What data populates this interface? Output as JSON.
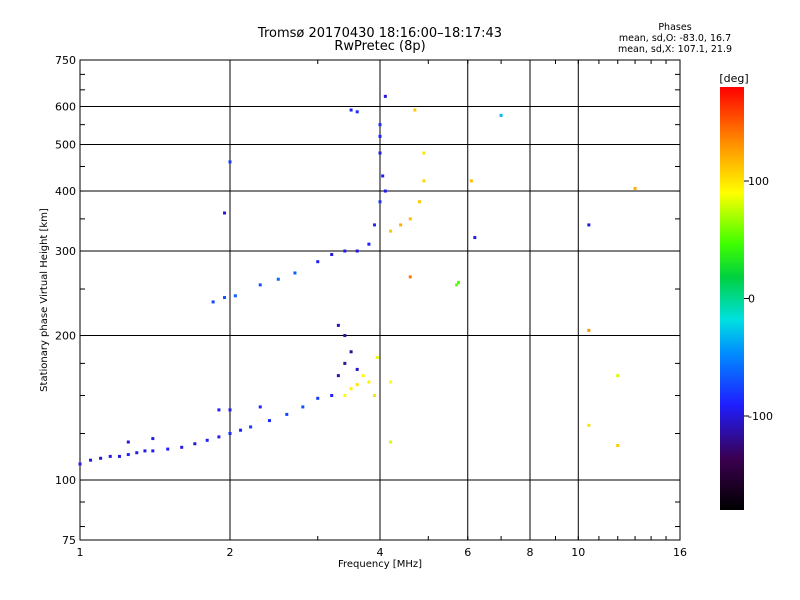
{
  "chart_data": {
    "type": "scatter",
    "title": "Tromsø 20170430 18:16:00–18:17:43",
    "subtitle": "RwPretec (8p)",
    "stats": {
      "heading": "Phases",
      "line1": "mean, sd,O: -83.0, 16.7",
      "line2": "mean, sd,X: 107.1, 21.9"
    },
    "xlabel": "Frequency [MHz]",
    "ylabel": "Stationary phase Virtual Height [km]",
    "x_scale": "log",
    "y_scale": "log",
    "xlim": [
      1,
      16
    ],
    "ylim": [
      75,
      750
    ],
    "x_ticks": [
      1,
      2,
      4,
      6,
      8,
      10,
      16
    ],
    "x_tick_labels": [
      "1",
      "2",
      "4",
      "6",
      "8",
      "10",
      "16"
    ],
    "y_ticks": [
      75,
      100,
      200,
      300,
      400,
      500,
      600,
      750
    ],
    "y_tick_labels": [
      "75",
      "100",
      "200",
      "300",
      "400",
      "500",
      "600",
      "750"
    ],
    "grid": true,
    "colorbar": {
      "label": "[deg]",
      "range": [
        -180,
        180
      ],
      "ticks": [
        100,
        0,
        -100
      ],
      "tick_labels": [
        "100",
        "0",
        "-100"
      ]
    },
    "series": [
      {
        "name": "",
        "points": [
          [
            1.0,
            108,
            -95
          ],
          [
            1.05,
            110,
            -100
          ],
          [
            1.1,
            111,
            -105
          ],
          [
            1.15,
            112,
            -95
          ],
          [
            1.2,
            112,
            -100
          ],
          [
            1.25,
            113,
            -90
          ],
          [
            1.3,
            114,
            -95
          ],
          [
            1.35,
            115,
            -100
          ],
          [
            1.4,
            115,
            -95
          ],
          [
            1.5,
            116,
            -90
          ],
          [
            1.6,
            117,
            -95
          ],
          [
            1.7,
            119,
            -100
          ],
          [
            1.8,
            121,
            -90
          ],
          [
            1.9,
            123,
            -95
          ],
          [
            2.0,
            125,
            -85
          ],
          [
            2.1,
            127,
            -90
          ],
          [
            2.2,
            129,
            -80
          ],
          [
            2.4,
            133,
            -85
          ],
          [
            2.6,
            137,
            -75
          ],
          [
            2.8,
            142,
            -70
          ],
          [
            3.0,
            148,
            -80
          ],
          [
            3.2,
            150,
            -90
          ],
          [
            3.3,
            165,
            -110
          ],
          [
            3.4,
            175,
            -115
          ],
          [
            3.5,
            185,
            -120
          ],
          [
            3.3,
            210,
            -110
          ],
          [
            3.4,
            200,
            -115
          ],
          [
            3.6,
            170,
            -105
          ],
          [
            1.25,
            120,
            -100
          ],
          [
            1.4,
            122,
            -95
          ],
          [
            1.9,
            140,
            -90
          ],
          [
            2.0,
            140,
            -95
          ],
          [
            2.3,
            142,
            -90
          ],
          [
            3.4,
            150,
            90
          ],
          [
            3.5,
            155,
            95
          ],
          [
            3.6,
            158,
            100
          ],
          [
            3.7,
            165,
            90
          ],
          [
            3.8,
            160,
            95
          ],
          [
            3.9,
            150,
            100
          ],
          [
            3.95,
            180,
            85
          ],
          [
            4.2,
            120,
            80
          ],
          [
            4.2,
            160,
            90
          ],
          [
            1.85,
            235,
            -75
          ],
          [
            1.95,
            240,
            -70
          ],
          [
            2.05,
            242,
            -65
          ],
          [
            2.3,
            255,
            -70
          ],
          [
            2.5,
            262,
            -60
          ],
          [
            2.7,
            270,
            -65
          ],
          [
            3.0,
            285,
            -90
          ],
          [
            3.2,
            295,
            -100
          ],
          [
            3.4,
            300,
            -95
          ],
          [
            3.6,
            300,
            -100
          ],
          [
            3.8,
            310,
            -90
          ],
          [
            3.9,
            340,
            -85
          ],
          [
            4.0,
            380,
            -80
          ],
          [
            4.05,
            430,
            -90
          ],
          [
            4.0,
            480,
            -95
          ],
          [
            4.0,
            550,
            -85
          ],
          [
            4.1,
            630,
            -100
          ],
          [
            3.5,
            590,
            -90
          ],
          [
            3.6,
            585,
            -85
          ],
          [
            4.0,
            520,
            -90
          ],
          [
            4.1,
            400,
            -95
          ],
          [
            4.2,
            330,
            110
          ],
          [
            4.4,
            340,
            120
          ],
          [
            4.6,
            350,
            115
          ],
          [
            4.8,
            380,
            110
          ],
          [
            4.9,
            420,
            105
          ],
          [
            4.9,
            480,
            100
          ],
          [
            5.7,
            255,
            55
          ],
          [
            5.75,
            258,
            50
          ],
          [
            6.1,
            420,
            115
          ],
          [
            6.2,
            320,
            -95
          ],
          [
            7.0,
            575,
            -30
          ],
          [
            10.5,
            340,
            -100
          ],
          [
            10.5,
            205,
            130
          ],
          [
            10.5,
            130,
            100
          ],
          [
            12.0,
            118,
            110
          ],
          [
            12.0,
            165,
            80
          ],
          [
            13.0,
            405,
            120
          ],
          [
            1.95,
            360,
            -100
          ],
          [
            2.0,
            460,
            -80
          ],
          [
            4.6,
            265,
            140
          ],
          [
            4.7,
            590,
            110
          ]
        ]
      }
    ]
  }
}
